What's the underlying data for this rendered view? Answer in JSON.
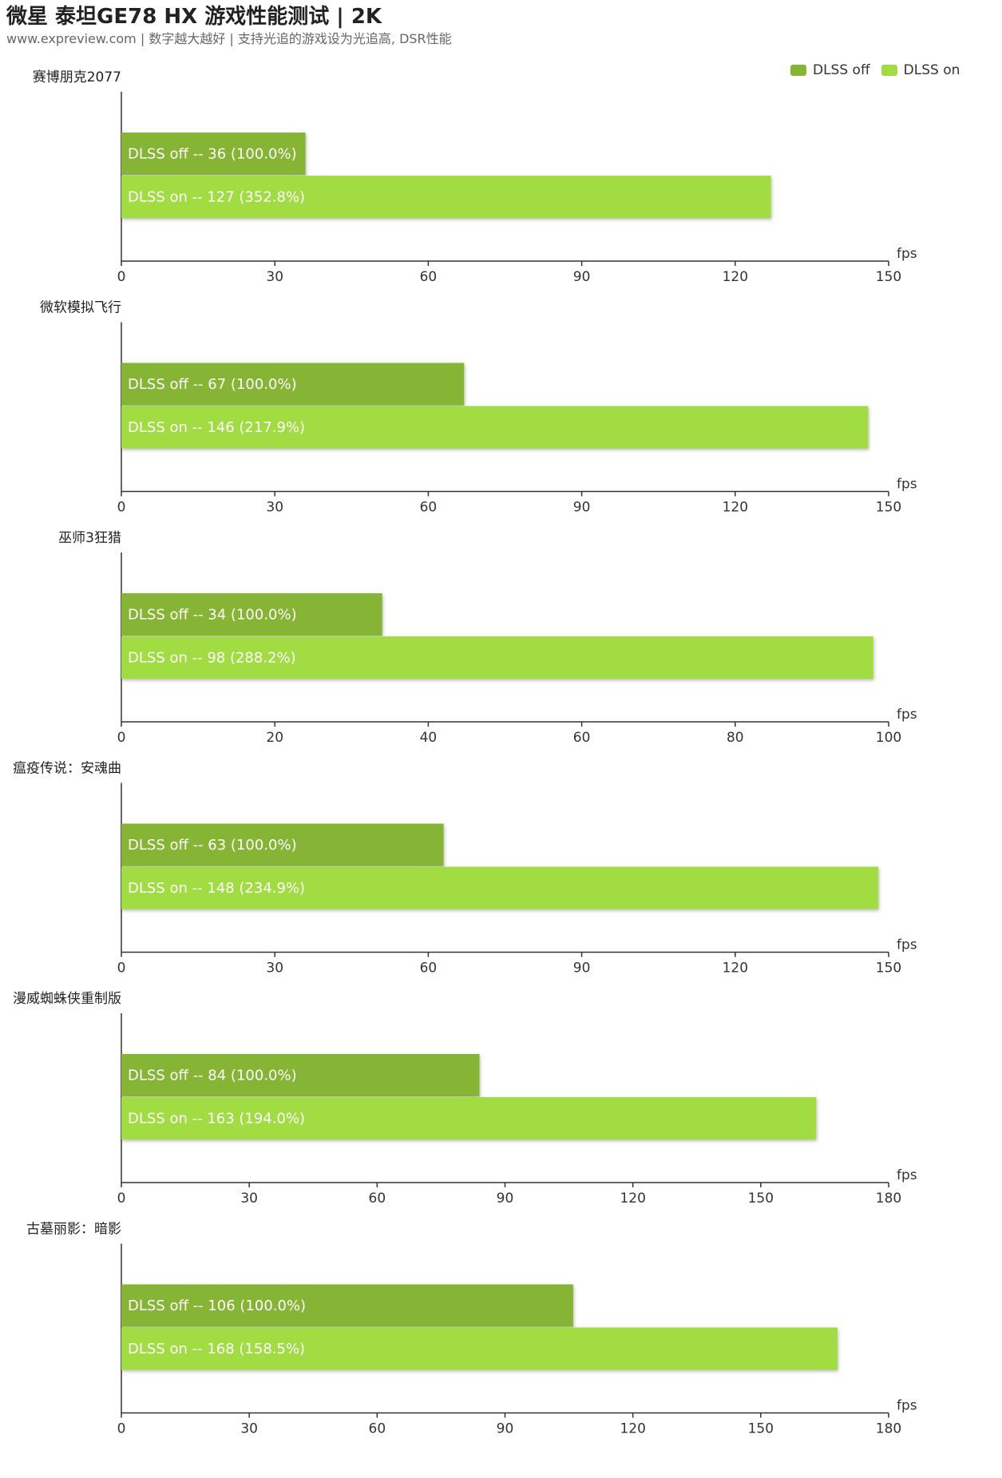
{
  "header": {
    "title": "微星 泰坦GE78 HX 游戏性能测试 | 2K",
    "subtitle": "www.expreview.com | 数字越大越好 | 支持光追的游戏设为光追高, DSR性能"
  },
  "legend": [
    {
      "name": "DLSS off",
      "color": "#86b536"
    },
    {
      "name": "DLSS on",
      "color": "#a1dc43"
    }
  ],
  "chart_data": [
    {
      "type": "bar",
      "orientation": "horizontal",
      "title": "赛博朋克2077",
      "unit": "fps",
      "xlim": [
        0,
        150
      ],
      "ticks": [
        "0",
        "30",
        "60",
        "90",
        "120",
        "150"
      ],
      "series": [
        {
          "name": "DLSS off",
          "value": 36,
          "label": "DLSS off  --  36 (100.0%)"
        },
        {
          "name": "DLSS on",
          "value": 127,
          "label": "DLSS on  --  127 (352.8%)"
        }
      ]
    },
    {
      "type": "bar",
      "orientation": "horizontal",
      "title": "微软模拟飞行",
      "unit": "fps",
      "xlim": [
        0,
        150
      ],
      "ticks": [
        "0",
        "30",
        "60",
        "90",
        "120",
        "150"
      ],
      "series": [
        {
          "name": "DLSS off",
          "value": 67,
          "label": "DLSS off  --  67 (100.0%)"
        },
        {
          "name": "DLSS on",
          "value": 146,
          "label": "DLSS on  --  146 (217.9%)"
        }
      ]
    },
    {
      "type": "bar",
      "orientation": "horizontal",
      "title": "巫师3狂猎",
      "unit": "fps",
      "xlim": [
        0,
        100
      ],
      "ticks": [
        "0",
        "20",
        "40",
        "60",
        "80",
        "100"
      ],
      "series": [
        {
          "name": "DLSS off",
          "value": 34,
          "label": "DLSS off  --  34 (100.0%)"
        },
        {
          "name": "DLSS on",
          "value": 98,
          "label": "DLSS on  --  98 (288.2%)"
        }
      ]
    },
    {
      "type": "bar",
      "orientation": "horizontal",
      "title": "瘟疫传说：安魂曲",
      "unit": "fps",
      "xlim": [
        0,
        150
      ],
      "ticks": [
        "0",
        "30",
        "60",
        "90",
        "120",
        "150"
      ],
      "series": [
        {
          "name": "DLSS off",
          "value": 63,
          "label": "DLSS off  --  63 (100.0%)"
        },
        {
          "name": "DLSS on",
          "value": 148,
          "label": "DLSS on  --  148 (234.9%)"
        }
      ]
    },
    {
      "type": "bar",
      "orientation": "horizontal",
      "title": "漫威蜘蛛侠重制版",
      "unit": "fps",
      "xlim": [
        0,
        180
      ],
      "ticks": [
        "0",
        "30",
        "60",
        "90",
        "120",
        "150",
        "180"
      ],
      "series": [
        {
          "name": "DLSS off",
          "value": 84,
          "label": "DLSS off  --  84 (100.0%)"
        },
        {
          "name": "DLSS on",
          "value": 163,
          "label": "DLSS on  --  163 (194.0%)"
        }
      ]
    },
    {
      "type": "bar",
      "orientation": "horizontal",
      "title": "古墓丽影：暗影",
      "unit": "fps",
      "xlim": [
        0,
        180
      ],
      "ticks": [
        "0",
        "30",
        "60",
        "90",
        "120",
        "150",
        "180"
      ],
      "series": [
        {
          "name": "DLSS off",
          "value": 106,
          "label": "DLSS off  --  106 (100.0%)"
        },
        {
          "name": "DLSS on",
          "value": 168,
          "label": "DLSS on  --  168 (158.5%)"
        }
      ]
    }
  ]
}
